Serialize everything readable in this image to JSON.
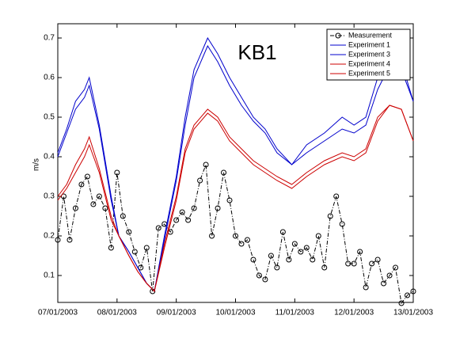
{
  "chart_data": {
    "type": "line",
    "title": "KB1",
    "y_label": "m/s",
    "xlim": [
      7,
      13
    ],
    "xticks": [
      {
        "value": 7,
        "label": "07/01/2003"
      },
      {
        "value": 8,
        "label": "08/01/2003"
      },
      {
        "value": 9,
        "label": "09/01/2003"
      },
      {
        "value": 10,
        "label": "10/01/2003"
      },
      {
        "value": 11,
        "label": "11/01/2003"
      },
      {
        "value": 12,
        "label": "12/01/2003"
      },
      {
        "value": 13,
        "label": "13/01/2003"
      }
    ],
    "ylim": [
      0.032,
      0.736
    ],
    "yticks": [
      0.1,
      0.2,
      0.3,
      0.4,
      0.5,
      0.6,
      0.7
    ],
    "legend": "upper right",
    "grid": false,
    "series": [
      {
        "name": "Measurement",
        "color": "#000000",
        "marker": "circle",
        "dash": "dashdot",
        "x": [
          7.0,
          7.1,
          7.2,
          7.3,
          7.4,
          7.5,
          7.6,
          7.7,
          7.8,
          7.9,
          8.0,
          8.1,
          8.2,
          8.3,
          8.4,
          8.5,
          8.6,
          8.7,
          8.8,
          8.9,
          9.0,
          9.1,
          9.2,
          9.3,
          9.4,
          9.5,
          9.6,
          9.7,
          9.8,
          9.9,
          10.0,
          10.1,
          10.2,
          10.3,
          10.4,
          10.5,
          10.6,
          10.7,
          10.8,
          10.9,
          11.0,
          11.1,
          11.2,
          11.3,
          11.4,
          11.5,
          11.6,
          11.7,
          11.8,
          11.9,
          12.0,
          12.1,
          12.2,
          12.3,
          12.4,
          12.5,
          12.6,
          12.7,
          12.8,
          12.9,
          13.0
        ],
        "values": [
          0.19,
          0.3,
          0.19,
          0.27,
          0.33,
          0.35,
          0.28,
          0.3,
          0.27,
          0.17,
          0.36,
          0.25,
          0.21,
          0.16,
          0.12,
          0.17,
          0.06,
          0.22,
          0.23,
          0.21,
          0.24,
          0.26,
          0.24,
          0.27,
          0.34,
          0.38,
          0.2,
          0.27,
          0.36,
          0.29,
          0.2,
          0.18,
          0.19,
          0.14,
          0.1,
          0.09,
          0.15,
          0.12,
          0.21,
          0.14,
          0.18,
          0.16,
          0.17,
          0.14,
          0.2,
          0.12,
          0.25,
          0.3,
          0.23,
          0.13,
          0.13,
          0.16,
          0.07,
          0.13,
          0.14,
          0.08,
          0.1,
          0.12,
          0.03,
          0.05,
          0.06
        ]
      },
      {
        "name": "Experiment 1",
        "color": "#0000cc",
        "x": [
          7,
          7.15,
          7.3,
          7.45,
          7.53,
          7.7,
          7.9,
          8.03,
          8.2,
          8.35,
          8.5,
          8.63,
          8.8,
          9,
          9.15,
          9.3,
          9.53,
          9.7,
          9.9,
          10.1,
          10.3,
          10.5,
          10.7,
          10.95,
          11.2,
          11.5,
          11.8,
          12,
          12.2,
          12.4,
          12.6,
          12.8,
          13
        ],
        "values": [
          0.41,
          0.47,
          0.54,
          0.57,
          0.6,
          0.48,
          0.3,
          0.2,
          0.16,
          0.12,
          0.08,
          0.06,
          0.2,
          0.35,
          0.5,
          0.62,
          0.7,
          0.66,
          0.6,
          0.55,
          0.5,
          0.47,
          0.42,
          0.38,
          0.43,
          0.46,
          0.5,
          0.48,
          0.5,
          0.6,
          0.65,
          0.64,
          0.54
        ]
      },
      {
        "name": "Experiment 3",
        "color": "#0000cc",
        "x": [
          7,
          7.15,
          7.3,
          7.45,
          7.53,
          7.7,
          7.9,
          8.03,
          8.2,
          8.35,
          8.5,
          8.63,
          8.8,
          9,
          9.15,
          9.3,
          9.53,
          9.7,
          9.9,
          10.1,
          10.3,
          10.5,
          10.7,
          10.95,
          11.2,
          11.5,
          11.8,
          12,
          12.2,
          12.4,
          12.6,
          12.8,
          13
        ],
        "values": [
          0.4,
          0.46,
          0.52,
          0.55,
          0.58,
          0.47,
          0.29,
          0.2,
          0.16,
          0.12,
          0.08,
          0.06,
          0.19,
          0.34,
          0.48,
          0.6,
          0.68,
          0.64,
          0.58,
          0.53,
          0.49,
          0.46,
          0.41,
          0.38,
          0.41,
          0.44,
          0.47,
          0.46,
          0.48,
          0.57,
          0.63,
          0.62,
          0.54
        ]
      },
      {
        "name": "Experiment 4",
        "color": "#cc0000",
        "x": [
          7,
          7.15,
          7.3,
          7.45,
          7.53,
          7.7,
          7.9,
          8.03,
          8.2,
          8.35,
          8.5,
          8.63,
          8.8,
          9,
          9.15,
          9.3,
          9.53,
          9.7,
          9.9,
          10.1,
          10.3,
          10.5,
          10.7,
          10.95,
          11.2,
          11.5,
          11.8,
          12,
          12.2,
          12.4,
          12.6,
          12.8,
          13
        ],
        "values": [
          0.3,
          0.33,
          0.38,
          0.42,
          0.45,
          0.37,
          0.25,
          0.2,
          0.15,
          0.11,
          0.08,
          0.06,
          0.18,
          0.3,
          0.42,
          0.48,
          0.52,
          0.5,
          0.45,
          0.42,
          0.39,
          0.37,
          0.35,
          0.33,
          0.36,
          0.39,
          0.41,
          0.4,
          0.42,
          0.5,
          0.53,
          0.52,
          0.44
        ]
      },
      {
        "name": "Experiment 5",
        "color": "#cc0000",
        "x": [
          7,
          7.15,
          7.3,
          7.45,
          7.53,
          7.7,
          7.9,
          8.03,
          8.2,
          8.35,
          8.5,
          8.63,
          8.8,
          9,
          9.15,
          9.3,
          9.53,
          9.7,
          9.9,
          10.1,
          10.3,
          10.5,
          10.7,
          10.95,
          11.2,
          11.5,
          11.8,
          12,
          12.2,
          12.4,
          12.6,
          12.8,
          13
        ],
        "values": [
          0.29,
          0.32,
          0.36,
          0.4,
          0.43,
          0.36,
          0.24,
          0.2,
          0.15,
          0.11,
          0.08,
          0.06,
          0.17,
          0.29,
          0.41,
          0.47,
          0.51,
          0.49,
          0.44,
          0.41,
          0.38,
          0.36,
          0.34,
          0.32,
          0.35,
          0.38,
          0.4,
          0.39,
          0.41,
          0.49,
          0.53,
          0.52,
          0.44
        ]
      }
    ]
  }
}
